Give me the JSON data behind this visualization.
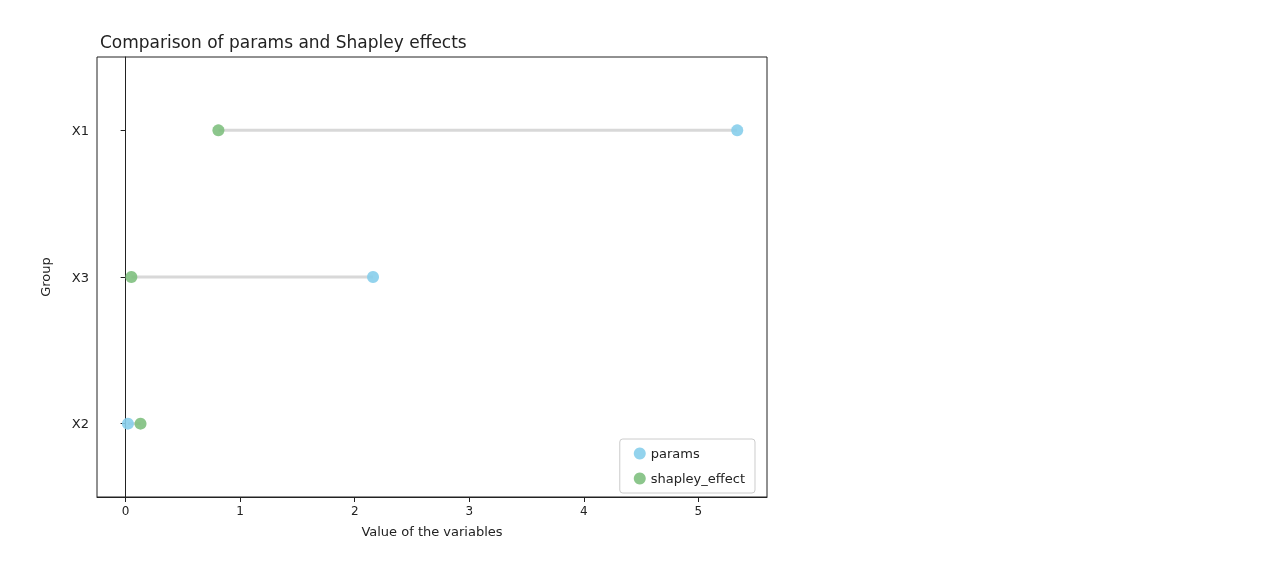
{
  "chart_data": {
    "type": "scatter",
    "orientation": "horizontal",
    "title": "Comparison of params and Shapley effects",
    "xlabel": "Value of the variables",
    "ylabel": "Group",
    "categories": [
      "X1",
      "X3",
      "X2"
    ],
    "series": [
      {
        "name": "params",
        "color": "#87ceeb",
        "values": [
          5.34,
          2.16,
          0.02
        ]
      },
      {
        "name": "shapley_effect",
        "color": "#80c080",
        "values": [
          0.81,
          0.05,
          0.13
        ]
      }
    ],
    "xlim": [
      -0.25,
      5.6
    ],
    "xticks": [
      0,
      1,
      2,
      3,
      4,
      5
    ],
    "grid": false,
    "legend": "bottom right",
    "marker": "circle"
  }
}
